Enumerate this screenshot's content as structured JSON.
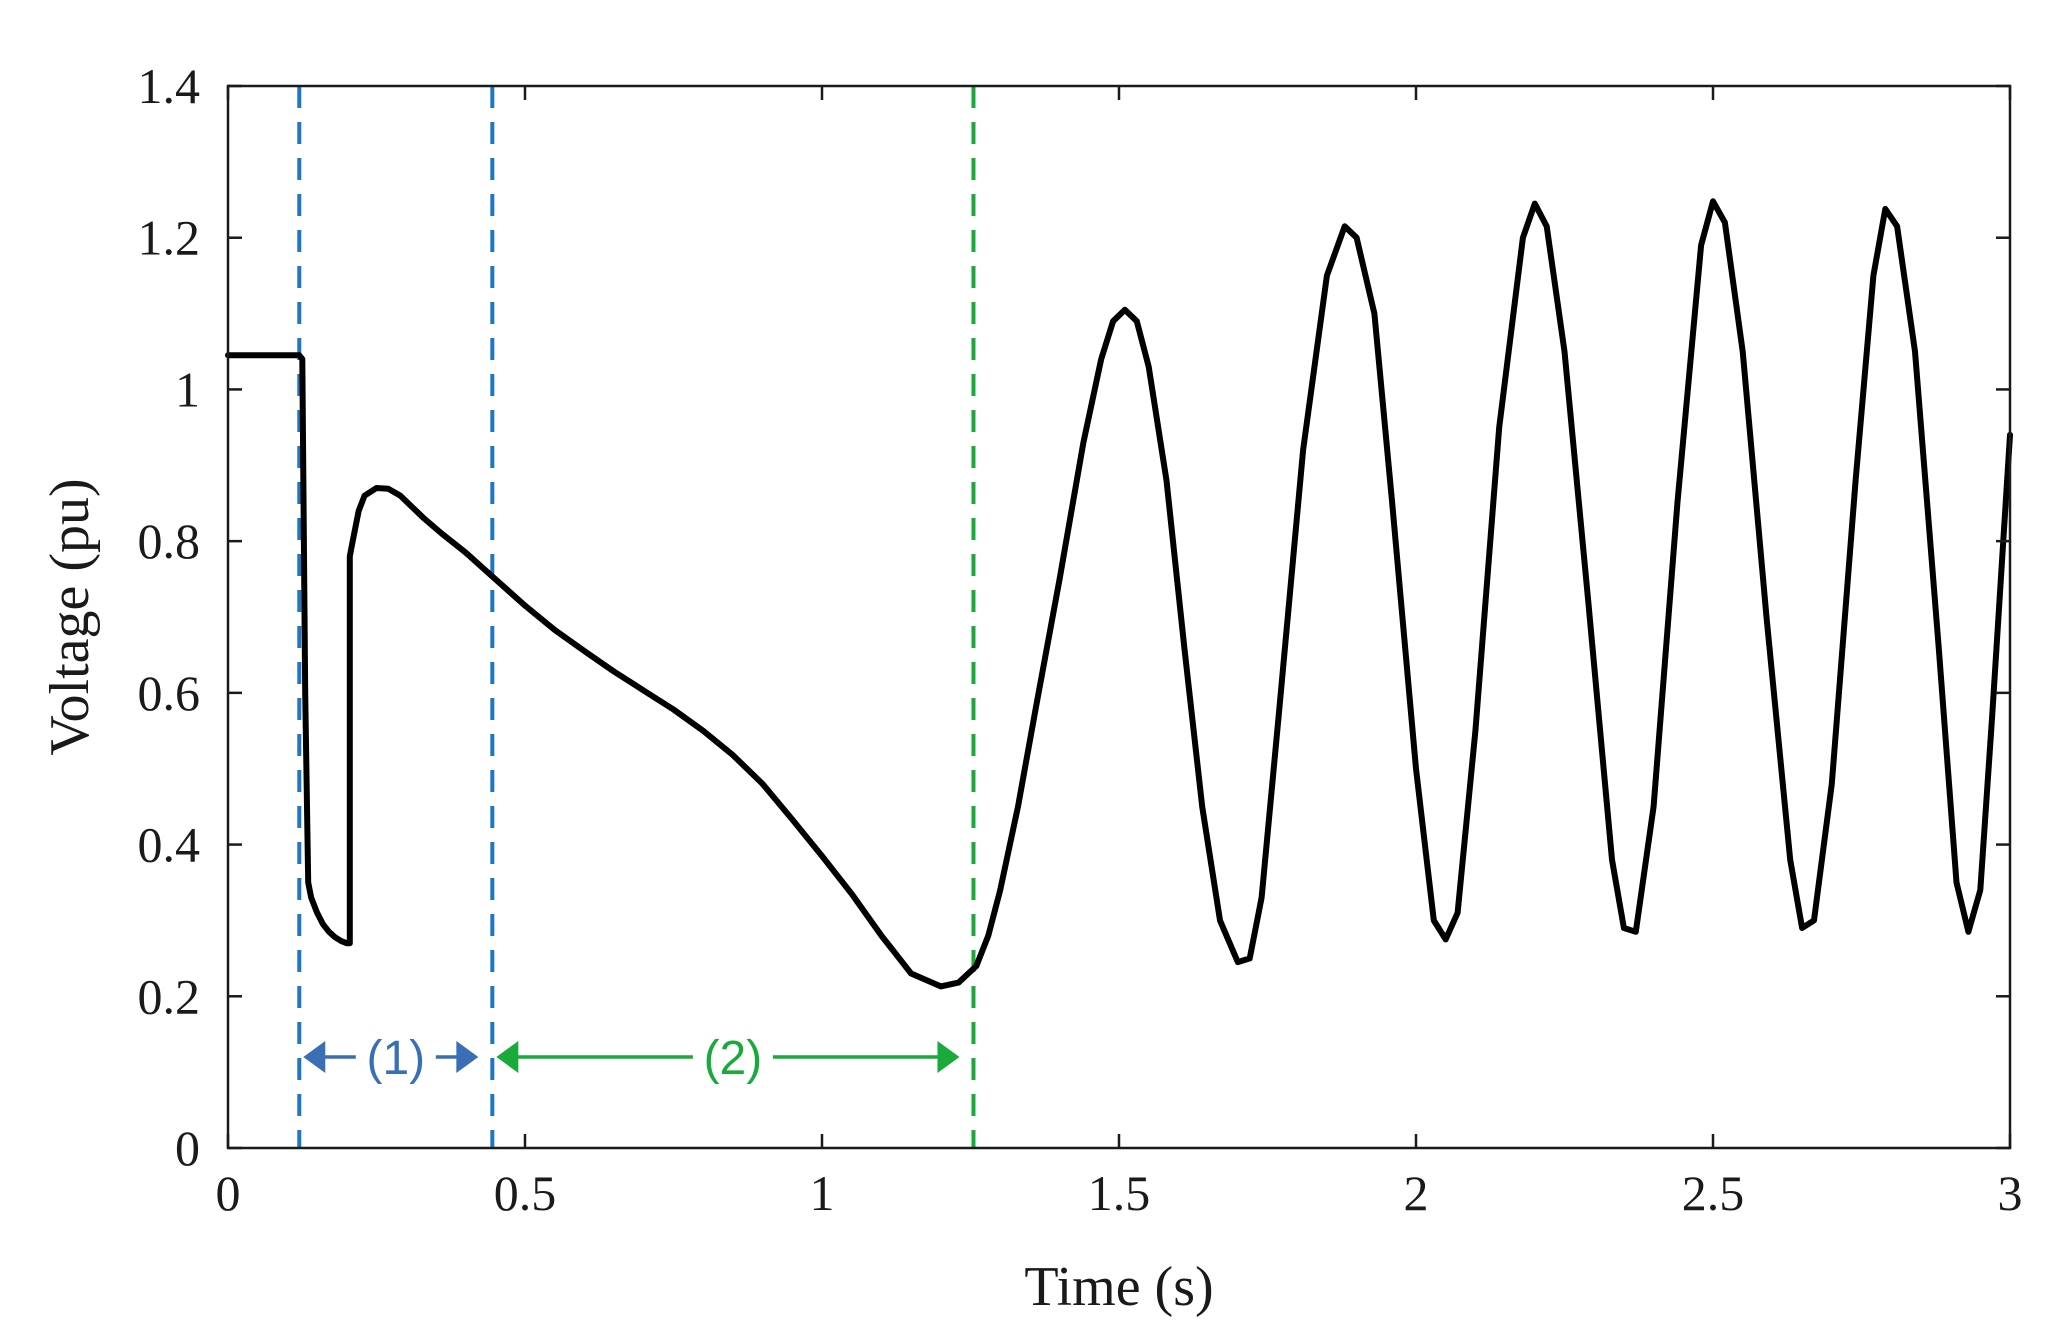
{
  "chart_data": {
    "type": "line",
    "title": "",
    "xlabel": "Time (s)",
    "ylabel": "Voltage (pu)",
    "xlim": [
      0,
      3
    ],
    "ylim": [
      0,
      1.4
    ],
    "xticks": [
      0,
      0.5,
      1,
      1.5,
      2,
      2.5,
      3
    ],
    "xtick_labels": [
      "0",
      "0.5",
      "1",
      "1.5",
      "2",
      "2.5",
      "3"
    ],
    "yticks": [
      0,
      0.2,
      0.4,
      0.6,
      0.8,
      1,
      1.2,
      1.4
    ],
    "ytick_labels": [
      "0",
      "0.2",
      "0.4",
      "0.6",
      "0.8",
      "1",
      "1.2",
      "1.4"
    ],
    "grid": false,
    "series": [
      {
        "color": "#000000",
        "x": [
          0,
          0.12,
          0.125,
          0.13,
          0.135,
          0.14,
          0.15,
          0.16,
          0.17,
          0.18,
          0.19,
          0.2,
          0.205,
          0.205,
          0.21,
          0.22,
          0.23,
          0.25,
          0.27,
          0.29,
          0.31,
          0.33,
          0.36,
          0.4,
          0.45,
          0.5,
          0.55,
          0.6,
          0.65,
          0.7,
          0.75,
          0.8,
          0.85,
          0.9,
          0.95,
          1.0,
          1.05,
          1.1,
          1.15,
          1.2,
          1.23,
          1.26,
          1.28,
          1.3,
          1.33,
          1.36,
          1.4,
          1.44,
          1.47,
          1.49,
          1.51,
          1.53,
          1.55,
          1.58,
          1.61,
          1.64,
          1.67,
          1.7,
          1.72,
          1.74,
          1.77,
          1.81,
          1.85,
          1.88,
          1.9,
          1.93,
          1.96,
          2.0,
          2.03,
          2.05,
          2.07,
          2.1,
          2.14,
          2.18,
          2.2,
          2.22,
          2.25,
          2.29,
          2.33,
          2.35,
          2.37,
          2.4,
          2.44,
          2.48,
          2.5,
          2.52,
          2.55,
          2.59,
          2.63,
          2.65,
          2.67,
          2.7,
          2.74,
          2.77,
          2.79,
          2.81,
          2.84,
          2.88,
          2.91,
          2.93,
          2.95,
          2.97,
          3.0
        ],
        "y": [
          1.045,
          1.045,
          1.04,
          0.6,
          0.35,
          0.33,
          0.31,
          0.295,
          0.285,
          0.278,
          0.273,
          0.27,
          0.27,
          0.78,
          0.8,
          0.84,
          0.86,
          0.87,
          0.869,
          0.86,
          0.845,
          0.83,
          0.81,
          0.785,
          0.75,
          0.715,
          0.683,
          0.655,
          0.628,
          0.603,
          0.578,
          0.55,
          0.518,
          0.48,
          0.433,
          0.385,
          0.335,
          0.28,
          0.23,
          0.213,
          0.218,
          0.24,
          0.28,
          0.34,
          0.45,
          0.58,
          0.75,
          0.93,
          1.04,
          1.09,
          1.105,
          1.09,
          1.03,
          0.88,
          0.66,
          0.45,
          0.3,
          0.245,
          0.25,
          0.33,
          0.58,
          0.92,
          1.15,
          1.215,
          1.2,
          1.1,
          0.85,
          0.5,
          0.3,
          0.275,
          0.31,
          0.55,
          0.95,
          1.2,
          1.245,
          1.215,
          1.05,
          0.72,
          0.38,
          0.29,
          0.285,
          0.45,
          0.85,
          1.19,
          1.248,
          1.22,
          1.05,
          0.7,
          0.38,
          0.29,
          0.3,
          0.48,
          0.88,
          1.15,
          1.238,
          1.215,
          1.05,
          0.66,
          0.35,
          0.285,
          0.34,
          0.57,
          0.94
        ]
      }
    ],
    "vlines": [
      {
        "x": 0.12,
        "color": "#1f77c4"
      },
      {
        "x": 0.445,
        "color": "#1f77c4"
      },
      {
        "x": 1.255,
        "color": "#1aaa3c"
      }
    ],
    "annotations": [
      {
        "label": "(1)",
        "x_start": 0.12,
        "x_end": 0.445,
        "y": 0.12,
        "color": "#3a6fb5"
      },
      {
        "label": "(2)",
        "x_start": 0.445,
        "x_end": 1.255,
        "y": 0.12,
        "color": "#1aaa3c"
      }
    ]
  }
}
